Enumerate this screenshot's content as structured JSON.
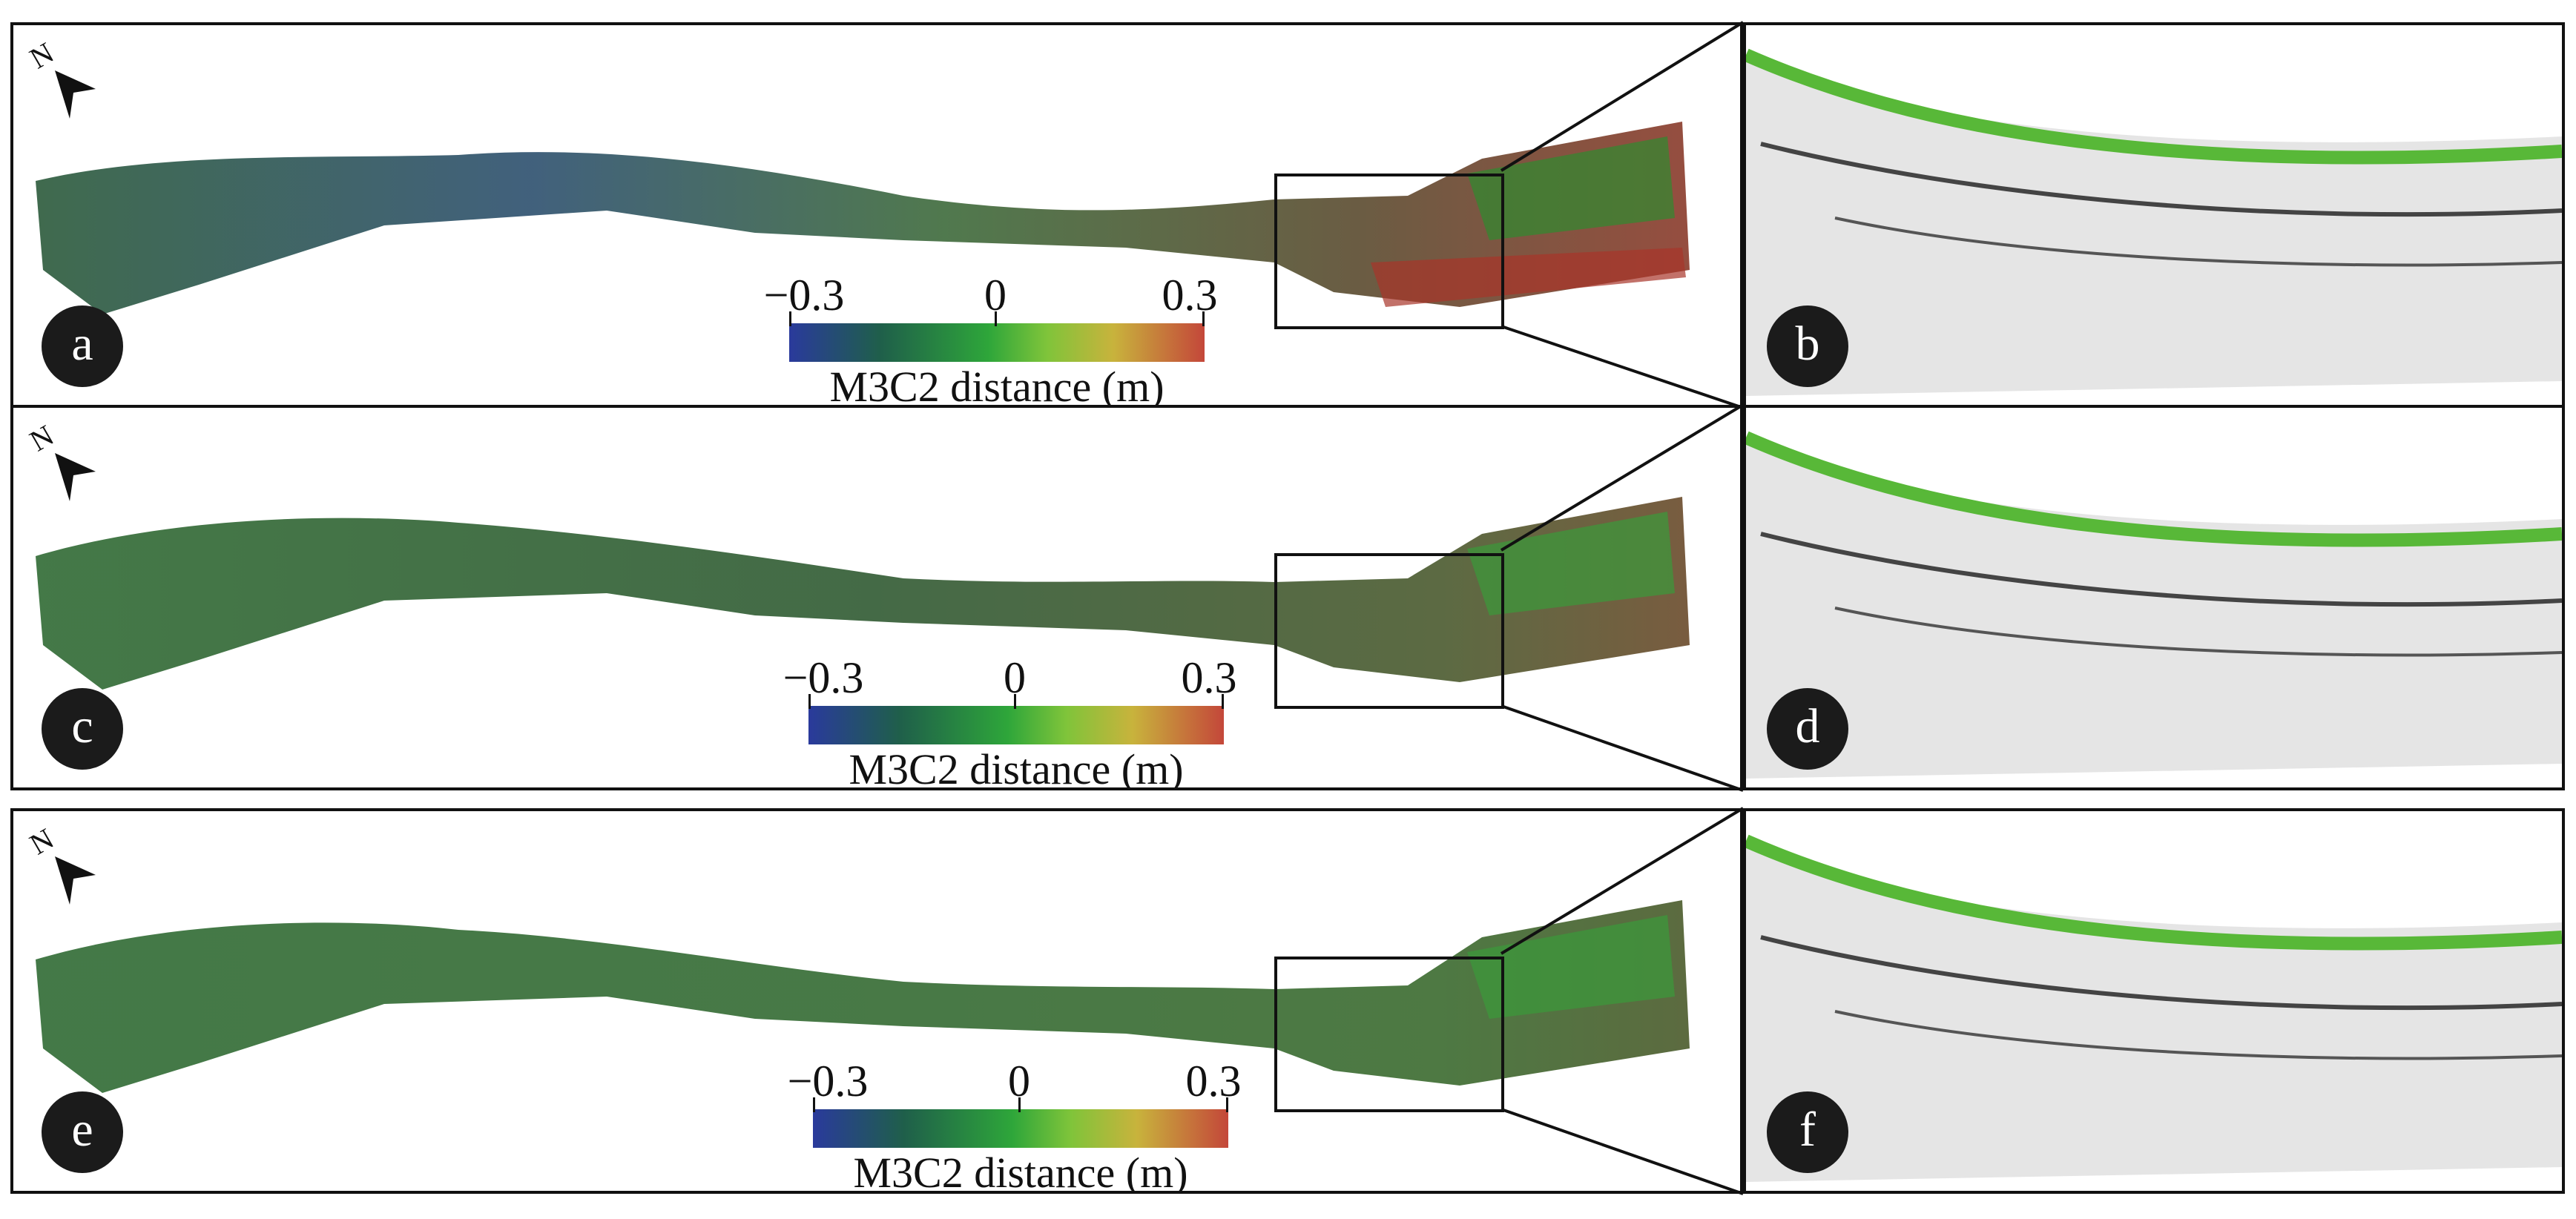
{
  "panels": [
    {
      "left_label": "a",
      "right_label": "b",
      "colorbar": {
        "min_label": "−0.3",
        "mid_label": "0",
        "max_label": "0.3",
        "title": "M3C2 distance (m)"
      }
    },
    {
      "left_label": "c",
      "right_label": "d",
      "colorbar": {
        "min_label": "−0.3",
        "mid_label": "0",
        "max_label": "0.3",
        "title": "M3C2 distance (m)"
      }
    },
    {
      "left_label": "e",
      "right_label": "f",
      "colorbar": {
        "min_label": "−0.3",
        "mid_label": "0",
        "max_label": "0.3",
        "title": "M3C2 distance (m)"
      }
    }
  ],
  "north_label": "N",
  "colors": {
    "negative": "#2a3a9c",
    "zero": "#2ea63a",
    "positive": "#c4473a",
    "frame": "#111111"
  }
}
